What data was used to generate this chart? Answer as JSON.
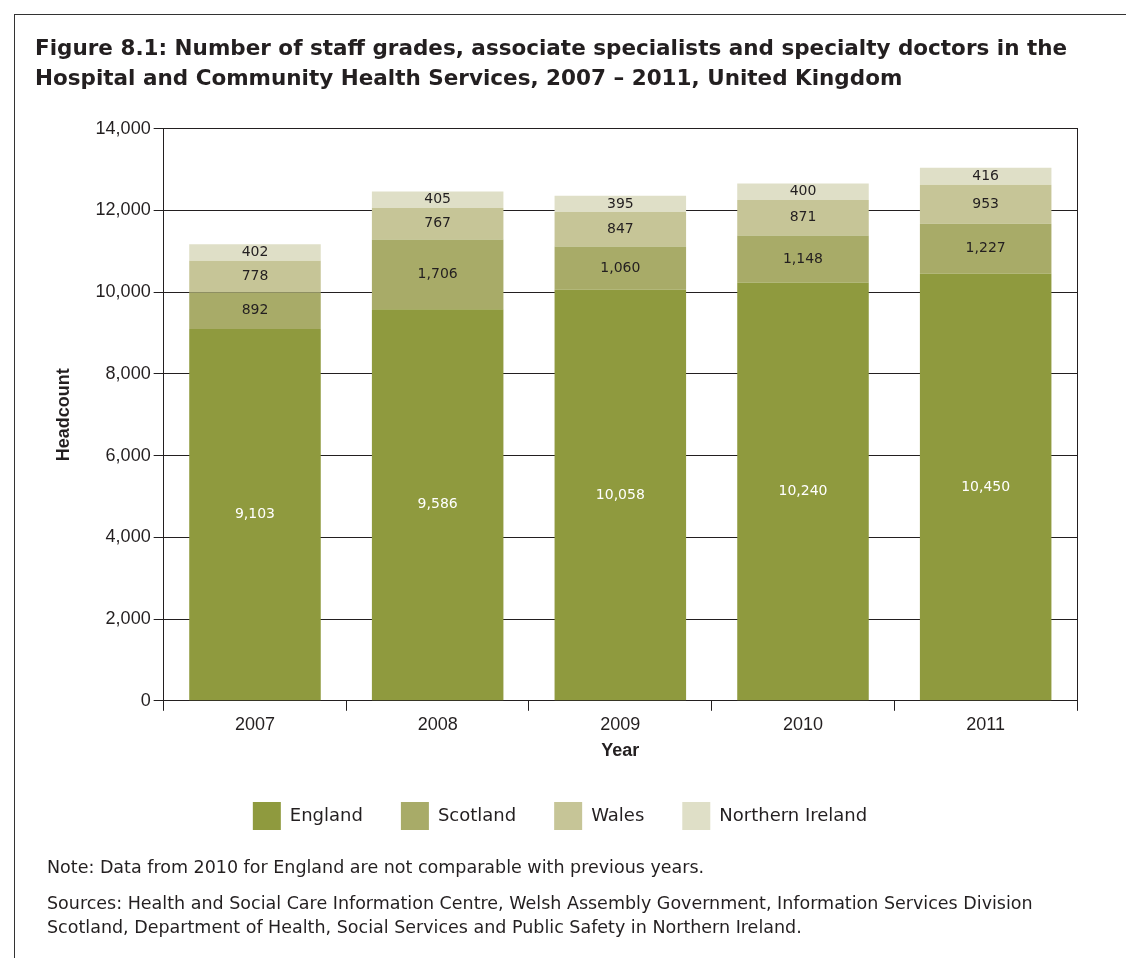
{
  "chart_data": {
    "type": "bar",
    "stacked": true,
    "title": "Figure 8.1: Number of staff grades, associate specialists and specialty doctors in the Hospital and Community Health Services, 2007 – 2011, United Kingdom",
    "xlabel": "Year",
    "ylabel": "Headcount",
    "categories": [
      "2007",
      "2008",
      "2009",
      "2010",
      "2011"
    ],
    "series": [
      {
        "name": "England",
        "color": "#8f9a3e",
        "values": [
          9103,
          9586,
          10058,
          10240,
          10450
        ],
        "value_labels": [
          "9,103",
          "9,586",
          "10,058",
          "10,240",
          "10,450"
        ]
      },
      {
        "name": "Scotland",
        "color": "#a8ab68",
        "values": [
          892,
          1706,
          1060,
          1148,
          1227
        ],
        "value_labels": [
          "892",
          "1,706",
          "1,060",
          "1,148",
          "1,227"
        ]
      },
      {
        "name": "Wales",
        "color": "#c6c597",
        "values": [
          778,
          767,
          847,
          871,
          953
        ],
        "value_labels": [
          "778",
          "767",
          "847",
          "871",
          "953"
        ]
      },
      {
        "name": "Northern Ireland",
        "color": "#dfdfc7",
        "values": [
          402,
          405,
          395,
          400,
          416
        ],
        "value_labels": [
          "402",
          "405",
          "395",
          "400",
          "416"
        ]
      }
    ],
    "ylim": [
      0,
      14000
    ],
    "yticks": [
      {
        "value": 0,
        "label": "0"
      },
      {
        "value": 2000,
        "label": "2,000"
      },
      {
        "value": 4000,
        "label": "4,000"
      },
      {
        "value": 6000,
        "label": "6,000"
      },
      {
        "value": 8000,
        "label": "8,000"
      },
      {
        "value": 10000,
        "label": "10,000"
      },
      {
        "value": 12000,
        "label": "12,000"
      },
      {
        "value": 14000,
        "label": "14,000"
      }
    ],
    "grid": "y",
    "legend": "bottom",
    "annotations": [
      "Note: Data from 2010 for England are not comparable with previous years.",
      "Sources:  Health and Social Care Information Centre, Welsh Assembly Government, Information Services Division Scotland, Department of Health, Social Services and Public Safety in Northern Ireland."
    ]
  }
}
